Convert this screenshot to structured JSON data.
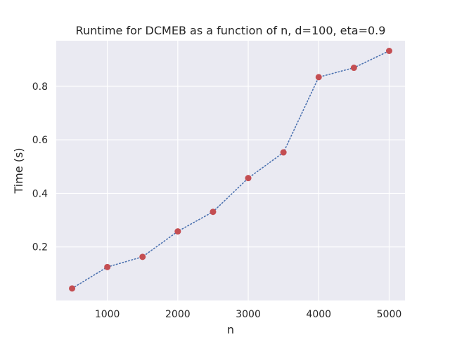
{
  "chart_data": {
    "type": "line",
    "title": "Runtime for DCMEB as a function of n, d=100, eta=0.9",
    "xlabel": "n",
    "ylabel": "Time (s)",
    "xlim": [
      275,
      5225
    ],
    "ylim": [
      0.0,
      0.97
    ],
    "xticks": [
      1000,
      2000,
      3000,
      4000,
      5000
    ],
    "yticks": [
      0.2,
      0.4,
      0.6,
      0.8
    ],
    "xtick_labels": [
      "1000",
      "2000",
      "3000",
      "4000",
      "5000"
    ],
    "ytick_labels": [
      "0.2",
      "0.4",
      "0.6",
      "0.8"
    ],
    "grid": true,
    "background_color": "#eaeaf2",
    "line_color": "#4c72b0",
    "marker_color": "#c44e52",
    "line_style": "dotted",
    "series": [
      {
        "x": [
          500,
          1000,
          1500,
          2000,
          2500,
          3000,
          3500,
          4000,
          4500,
          5000
        ],
        "y": [
          0.045,
          0.125,
          0.163,
          0.258,
          0.331,
          0.457,
          0.553,
          0.834,
          0.869,
          0.932
        ]
      }
    ]
  }
}
